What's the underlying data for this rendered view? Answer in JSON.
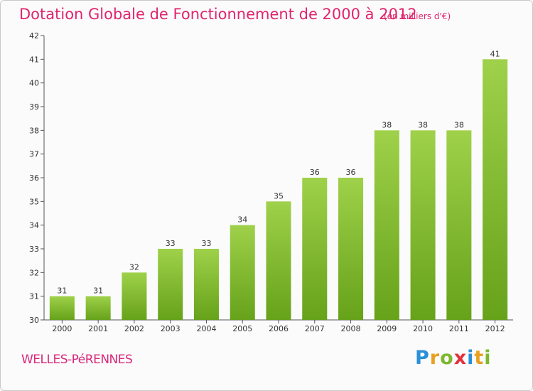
{
  "header": {
    "title": "Dotation Globale de Fonctionnement de 2000 à 2012",
    "subtitle": "(en milliers d'€)"
  },
  "footer": {
    "commune": "WELLES-PéRENNES",
    "logo": {
      "letters": [
        "P",
        "r",
        "o",
        "x",
        "i",
        "t",
        "i"
      ],
      "colors": [
        "#2a8fd8",
        "#e8a020",
        "#7cb82f",
        "#e2323b",
        "#2a8fd8",
        "#e8a020",
        "#7cb82f"
      ]
    }
  },
  "chart_data": {
    "type": "bar",
    "categories": [
      "2000",
      "2001",
      "2002",
      "2003",
      "2004",
      "2005",
      "2006",
      "2007",
      "2008",
      "2009",
      "2010",
      "2011",
      "2012"
    ],
    "values": [
      31,
      31,
      32,
      33,
      33,
      34,
      35,
      36,
      36,
      38,
      38,
      38,
      41
    ],
    "data_labels": [
      "31",
      "31",
      "32",
      "33",
      "33",
      "34",
      "35",
      "36",
      "36",
      "38",
      "38",
      "38",
      "41"
    ],
    "yticks": [
      "30",
      "31",
      "32",
      "33",
      "34",
      "35",
      "36",
      "37",
      "38",
      "39",
      "40",
      "41",
      "42"
    ],
    "ylim": [
      30,
      42
    ],
    "grid": false,
    "legend": false,
    "bar_color_top": "#9fd14a",
    "bar_color_bottom": "#66a21a"
  }
}
